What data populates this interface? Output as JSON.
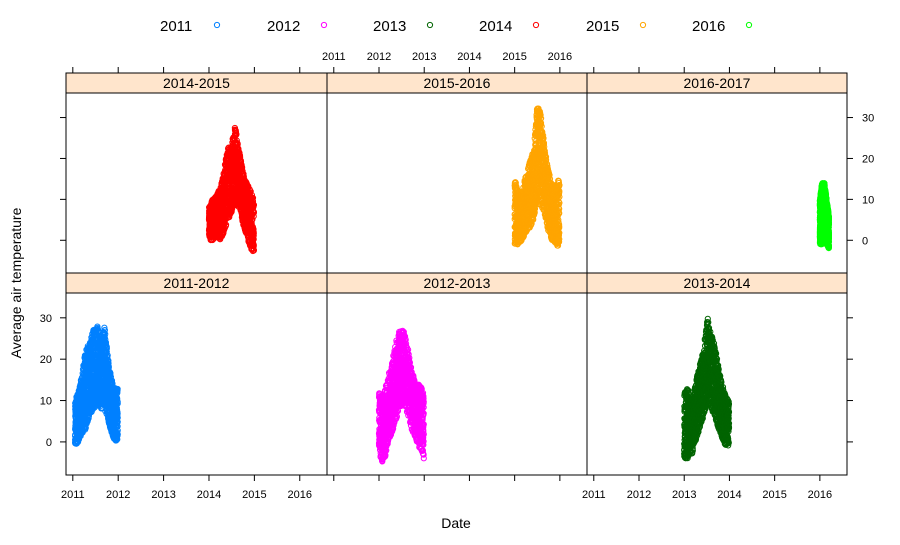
{
  "chart_data": {
    "type": "scatter",
    "layout": "lattice panels, 3 columns x 2 rows",
    "xlabel": "Date",
    "ylabel": "Average air temperature",
    "xlim": [
      2010.85,
      2016.6
    ],
    "ylim": [
      -8,
      36
    ],
    "x_ticks": [
      2011,
      2012,
      2013,
      2014,
      2015,
      2016
    ],
    "y_ticks": [
      0,
      10,
      20,
      30
    ],
    "grid": false,
    "legend_position": "top",
    "legend": [
      {
        "label": "2011",
        "color": "#0080ff"
      },
      {
        "label": "2012",
        "color": "#ff00ff"
      },
      {
        "label": "2013",
        "color": "#006400"
      },
      {
        "label": "2014",
        "color": "#ff0000"
      },
      {
        "label": "2015",
        "color": "#ffa500"
      },
      {
        "label": "2016",
        "color": "#00ff00"
      }
    ],
    "panels": [
      {
        "label": "2014-2015",
        "row": 0,
        "col": 0,
        "series": "2014",
        "color": "#ff0000",
        "x_range": [
          2014.0,
          2014.99
        ],
        "envelope": [
          [
            2014.0,
            0,
            8
          ],
          [
            2014.08,
            0,
            10
          ],
          [
            2014.17,
            1,
            11
          ],
          [
            2014.25,
            0,
            13
          ],
          [
            2014.33,
            2,
            17
          ],
          [
            2014.42,
            5,
            23
          ],
          [
            2014.5,
            7,
            24
          ],
          [
            2014.58,
            9,
            28
          ],
          [
            2014.67,
            8,
            22
          ],
          [
            2014.75,
            4,
            17
          ],
          [
            2014.83,
            1,
            14
          ],
          [
            2014.92,
            -2,
            12
          ],
          [
            2014.99,
            -3,
            10
          ]
        ]
      },
      {
        "label": "2015-2016",
        "row": 0,
        "col": 1,
        "series": "2015",
        "color": "#ffa500",
        "x_range": [
          2015.0,
          2015.99
        ],
        "envelope": [
          [
            2015.0,
            -1,
            15
          ],
          [
            2015.08,
            -1,
            12
          ],
          [
            2015.17,
            0,
            12
          ],
          [
            2015.25,
            2,
            16
          ],
          [
            2015.33,
            3,
            19
          ],
          [
            2015.42,
            5,
            22
          ],
          [
            2015.5,
            10,
            33
          ],
          [
            2015.58,
            8,
            31
          ],
          [
            2015.67,
            6,
            22
          ],
          [
            2015.75,
            2,
            17
          ],
          [
            2015.83,
            0,
            13
          ],
          [
            2015.92,
            -1,
            14
          ],
          [
            2015.99,
            -2,
            15
          ]
        ]
      },
      {
        "label": "2016-2017",
        "row": 0,
        "col": 2,
        "series": "2016",
        "color": "#00ff00",
        "x_range": [
          2016.0,
          2016.2
        ],
        "envelope": [
          [
            2016.0,
            -1,
            10
          ],
          [
            2016.05,
            -1,
            14
          ],
          [
            2016.1,
            0,
            14
          ],
          [
            2016.15,
            -1,
            10
          ],
          [
            2016.2,
            -2,
            6
          ]
        ]
      },
      {
        "label": "2011-2012",
        "row": 1,
        "col": 0,
        "series": "2011",
        "color": "#0080ff",
        "x_range": [
          2011.05,
          2011.99
        ],
        "envelope": [
          [
            2011.05,
            -1,
            10
          ],
          [
            2011.12,
            0,
            12
          ],
          [
            2011.2,
            2,
            16
          ],
          [
            2011.28,
            3,
            22
          ],
          [
            2011.36,
            6,
            24
          ],
          [
            2011.45,
            8,
            27
          ],
          [
            2011.55,
            9,
            28
          ],
          [
            2011.62,
            8,
            25
          ],
          [
            2011.7,
            8,
            28
          ],
          [
            2011.78,
            5,
            20
          ],
          [
            2011.86,
            2,
            15
          ],
          [
            2011.93,
            0,
            13
          ],
          [
            2011.99,
            0,
            13
          ]
        ]
      },
      {
        "label": "2012-2013",
        "row": 1,
        "col": 1,
        "series": "2012",
        "color": "#ff00ff",
        "x_range": [
          2012.0,
          2012.99
        ],
        "envelope": [
          [
            2012.0,
            -1,
            12
          ],
          [
            2012.05,
            -5,
            11
          ],
          [
            2012.12,
            -5,
            12
          ],
          [
            2012.2,
            0,
            16
          ],
          [
            2012.28,
            2,
            19
          ],
          [
            2012.37,
            5,
            24
          ],
          [
            2012.45,
            8,
            27
          ],
          [
            2012.55,
            9,
            27
          ],
          [
            2012.63,
            7,
            23
          ],
          [
            2012.72,
            3,
            18
          ],
          [
            2012.8,
            1,
            14
          ],
          [
            2012.88,
            -1,
            14
          ],
          [
            2012.95,
            -3,
            13
          ],
          [
            2012.99,
            -4,
            11
          ]
        ]
      },
      {
        "label": "2013-2014",
        "row": 1,
        "col": 2,
        "series": "2013",
        "color": "#006400",
        "x_range": [
          2013.0,
          2013.99
        ],
        "envelope": [
          [
            2013.0,
            -4,
            12
          ],
          [
            2013.08,
            -4,
            13
          ],
          [
            2013.17,
            -3,
            9
          ],
          [
            2013.25,
            0,
            14
          ],
          [
            2013.33,
            3,
            18
          ],
          [
            2013.42,
            6,
            22
          ],
          [
            2013.52,
            10,
            30
          ],
          [
            2013.6,
            8,
            26
          ],
          [
            2013.68,
            6,
            23
          ],
          [
            2013.76,
            3,
            18
          ],
          [
            2013.84,
            1,
            14
          ],
          [
            2013.92,
            -1,
            11
          ],
          [
            2013.99,
            -1,
            10
          ]
        ]
      }
    ]
  }
}
